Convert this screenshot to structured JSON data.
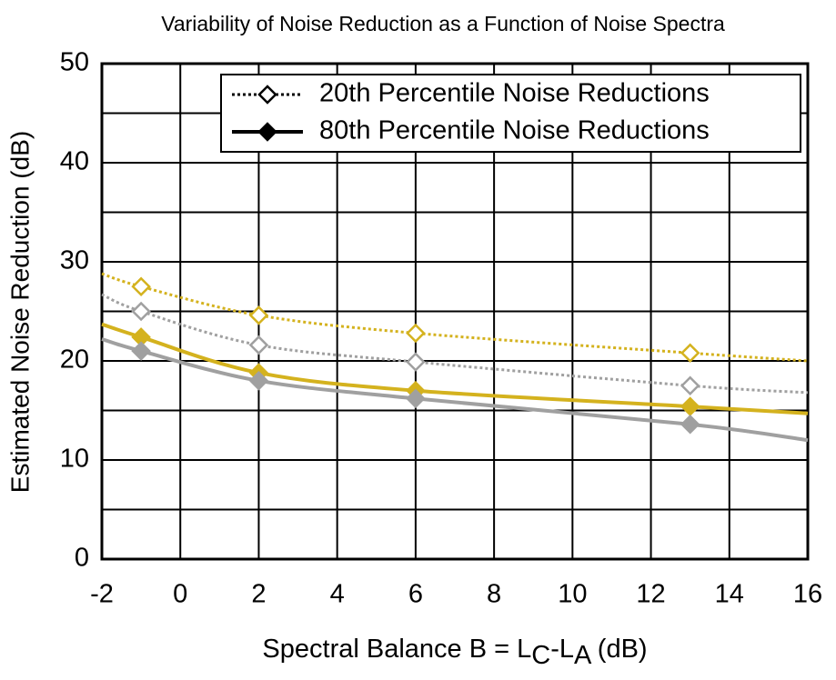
{
  "chart_data": {
    "type": "line",
    "title": "Variability of Noise Reduction as a Function of Noise Spectra",
    "x_label": {
      "start": "Spectral Balance B = L",
      "sub1": "C",
      "mid": "-L",
      "sub2": "A",
      "end": " (dB)"
    },
    "y_label": "Estimated Noise Reduction (dB)",
    "xlim": [
      -2,
      16
    ],
    "xticks": [
      -2,
      0,
      2,
      4,
      6,
      8,
      10,
      12,
      14,
      16
    ],
    "ylim": [
      0,
      50
    ],
    "yticks": [
      0,
      10,
      20,
      30,
      40,
      50
    ],
    "y_minor_grid": [
      5,
      15,
      25,
      35,
      45
    ],
    "grid": true,
    "legend": [
      {
        "name": "20th Percentile Noise Reductions",
        "dash": "dotted",
        "marker": "open-diamond",
        "color": "#000000"
      },
      {
        "name": "80th Percentile Noise Reductions",
        "dash": "solid",
        "marker": "filled-diamond",
        "color": "#000000"
      }
    ],
    "legend_position": "upper right",
    "x": [
      -2,
      -1,
      2,
      6,
      13,
      16
    ],
    "marked": [
      false,
      true,
      true,
      true,
      true,
      false
    ],
    "series": [
      {
        "color": "#d4b21e",
        "dash": "dotted",
        "marker": "open-diamond",
        "values": [
          28.8,
          27.5,
          24.6,
          22.8,
          20.8,
          20.0
        ]
      },
      {
        "color": "#a0a0a0",
        "dash": "dotted",
        "marker": "open-diamond",
        "values": [
          26.7,
          25.0,
          21.6,
          19.9,
          17.5,
          16.8
        ]
      },
      {
        "color": "#d4b21e",
        "dash": "solid",
        "marker": "filled-diamond",
        "values": [
          23.7,
          22.4,
          18.8,
          17.0,
          15.4,
          14.7
        ]
      },
      {
        "color": "#a0a0a0",
        "dash": "solid",
        "marker": "filled-diamond",
        "values": [
          22.2,
          21.0,
          18.0,
          16.2,
          13.6,
          12.0
        ]
      }
    ]
  }
}
